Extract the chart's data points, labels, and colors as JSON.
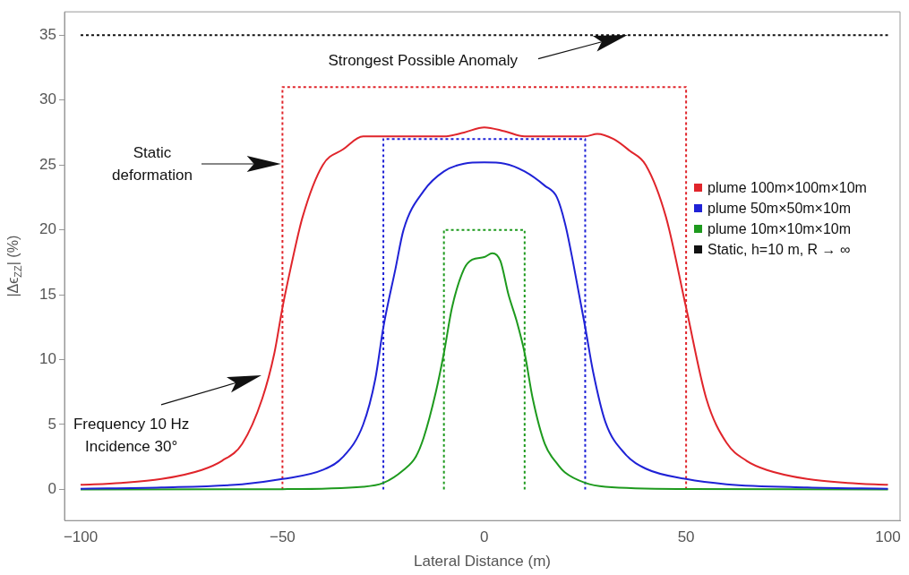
{
  "chart_data": {
    "type": "line",
    "xlabel": "Lateral Distance (m)",
    "ylabel": "|Δϵ$_{ZZ}$| (%)",
    "xlim": [
      -104,
      103
    ],
    "ylim": [
      -2.4,
      36.8
    ],
    "xticks": [
      -100,
      -50,
      0,
      50,
      100
    ],
    "yticks": [
      0,
      5,
      10,
      15,
      20,
      25,
      30,
      35
    ],
    "grid": false,
    "legend": "right",
    "marker": "none",
    "series": [
      {
        "name": "plume 100m×100m×10m",
        "color": "#e0252b",
        "line_style": "solid",
        "x": [
          -100,
          -90,
          -80,
          -70,
          -65,
          -60,
          -55,
          -52,
          -50,
          -48,
          -45,
          -40,
          -35,
          -30,
          -20,
          -10,
          -5,
          0,
          5,
          10,
          25,
          28,
          32,
          36,
          40,
          45,
          50,
          55,
          60,
          65,
          70,
          80,
          90,
          100
        ],
        "values": [
          0.35,
          0.5,
          0.8,
          1.5,
          2.2,
          3.5,
          7,
          10.5,
          14,
          17,
          21,
          25,
          26.2,
          27.2,
          27.2,
          27.2,
          27.5,
          27.9,
          27.6,
          27.2,
          27.2,
          27.4,
          27,
          26.1,
          25,
          21,
          14,
          7,
          3.6,
          2.2,
          1.5,
          0.8,
          0.5,
          0.35
        ]
      },
      {
        "name": "plume 50m×50m×10m",
        "color": "#1f22d6",
        "line_style": "solid",
        "x": [
          -100,
          -80,
          -60,
          -50,
          -40,
          -35,
          -30,
          -27,
          -25,
          -22,
          -20,
          -15,
          -10,
          -5,
          0,
          5,
          10,
          15,
          18,
          20,
          22,
          25,
          27,
          30,
          35,
          40,
          50,
          60,
          80,
          100
        ],
        "values": [
          0.05,
          0.15,
          0.4,
          0.8,
          1.5,
          2.5,
          5,
          8.5,
          12.5,
          17,
          20,
          23,
          24.5,
          25.1,
          25.2,
          25.1,
          24.5,
          23.4,
          22.5,
          20.5,
          17.5,
          12.5,
          9,
          5.2,
          2.7,
          1.6,
          0.8,
          0.4,
          0.15,
          0.05
        ]
      },
      {
        "name": "plume 10m×10m×10m",
        "color": "#1e9a1e",
        "line_style": "solid",
        "x": [
          -100,
          -50,
          -30,
          -25,
          -20,
          -17,
          -15,
          -12,
          -10,
          -8,
          -5,
          -3,
          0,
          2,
          4,
          6,
          8,
          10,
          12,
          15,
          18,
          20,
          25,
          30,
          50,
          100
        ],
        "values": [
          0,
          0.02,
          0.2,
          0.5,
          1.5,
          2.5,
          4,
          7.5,
          10.5,
          14,
          17,
          17.7,
          17.9,
          18.2,
          17.6,
          15,
          13,
          10.5,
          7,
          3.5,
          2,
          1.3,
          0.5,
          0.2,
          0.03,
          0
        ]
      },
      {
        "name": "Static, h=10 m, R → ∞",
        "color": "#111111",
        "line_style": "dotted",
        "x": [
          -100,
          100
        ],
        "values": [
          35,
          35
        ]
      },
      {
        "color": "#e0252b",
        "line_style": "dotted",
        "x": [
          -50,
          -50,
          50,
          50
        ],
        "values": [
          0,
          31,
          31,
          0
        ]
      },
      {
        "color": "#1f22d6",
        "line_style": "dotted",
        "x": [
          -25,
          -25,
          25,
          25
        ],
        "values": [
          0,
          27,
          27,
          0
        ]
      },
      {
        "color": "#1e9a1e",
        "line_style": "dotted",
        "x": [
          -10,
          -10,
          10,
          10
        ],
        "values": [
          0,
          20,
          20,
          0
        ]
      }
    ],
    "annotations": [
      "Strongest Possible Anomaly",
      "Static\ndeformation",
      "Frequency 10 Hz\nIncidence 30°"
    ]
  }
}
